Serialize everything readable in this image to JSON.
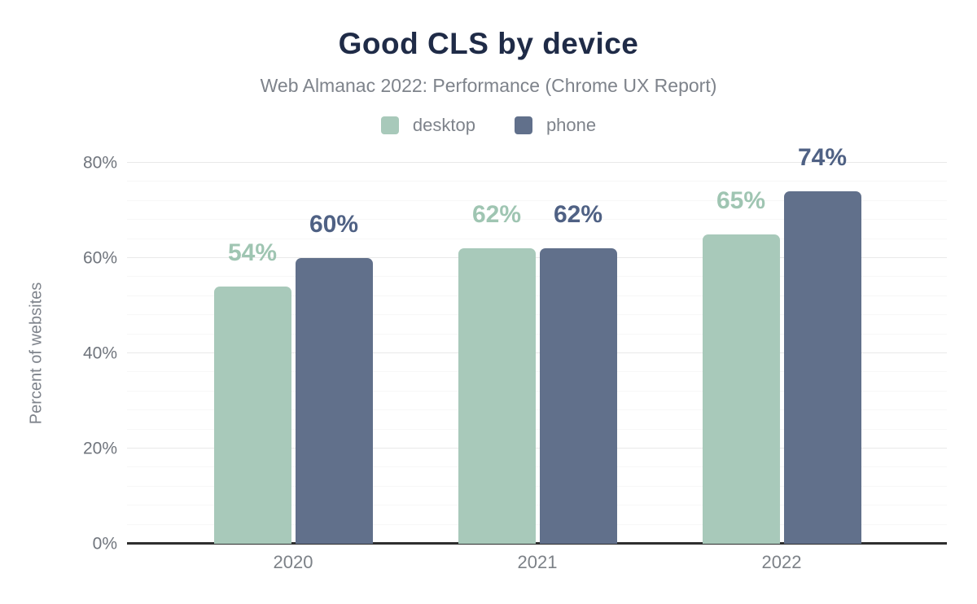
{
  "chart_data": {
    "type": "bar",
    "title": "Good CLS by device",
    "subtitle": "Web Almanac 2022: Performance (Chrome UX Report)",
    "categories": [
      "2020",
      "2021",
      "2022"
    ],
    "series": [
      {
        "name": "desktop",
        "values": [
          54,
          62,
          65
        ],
        "labels": [
          "54%",
          "62%",
          "65%"
        ],
        "color": "#a8c9ba",
        "label_color": "#9fc5b2"
      },
      {
        "name": "phone",
        "values": [
          60,
          62,
          74
        ],
        "labels": [
          "60%",
          "62%",
          "74%"
        ],
        "color": "#61708b",
        "label_color": "#4f6184"
      }
    ],
    "xlabel": "",
    "ylabel": "Percent of websites",
    "ylim": [
      0,
      80
    ],
    "y_ticks": [
      "0%",
      "20%",
      "40%",
      "60%",
      "80%"
    ],
    "y_tick_values": [
      0,
      20,
      40,
      60,
      80
    ],
    "minor_grid_step_pct": 4,
    "grid": true,
    "legend_position": "top"
  },
  "colors": {
    "background": "#ffffff",
    "title": "#1f2b47",
    "subtitle": "#7e838b",
    "axis_text": "#70757d",
    "axis_line": "#2e2e2e",
    "grid_major": "#e9e9e9",
    "grid_minor": "#f7f7f7",
    "desktop": "#a8c9ba",
    "phone": "#61708b"
  }
}
